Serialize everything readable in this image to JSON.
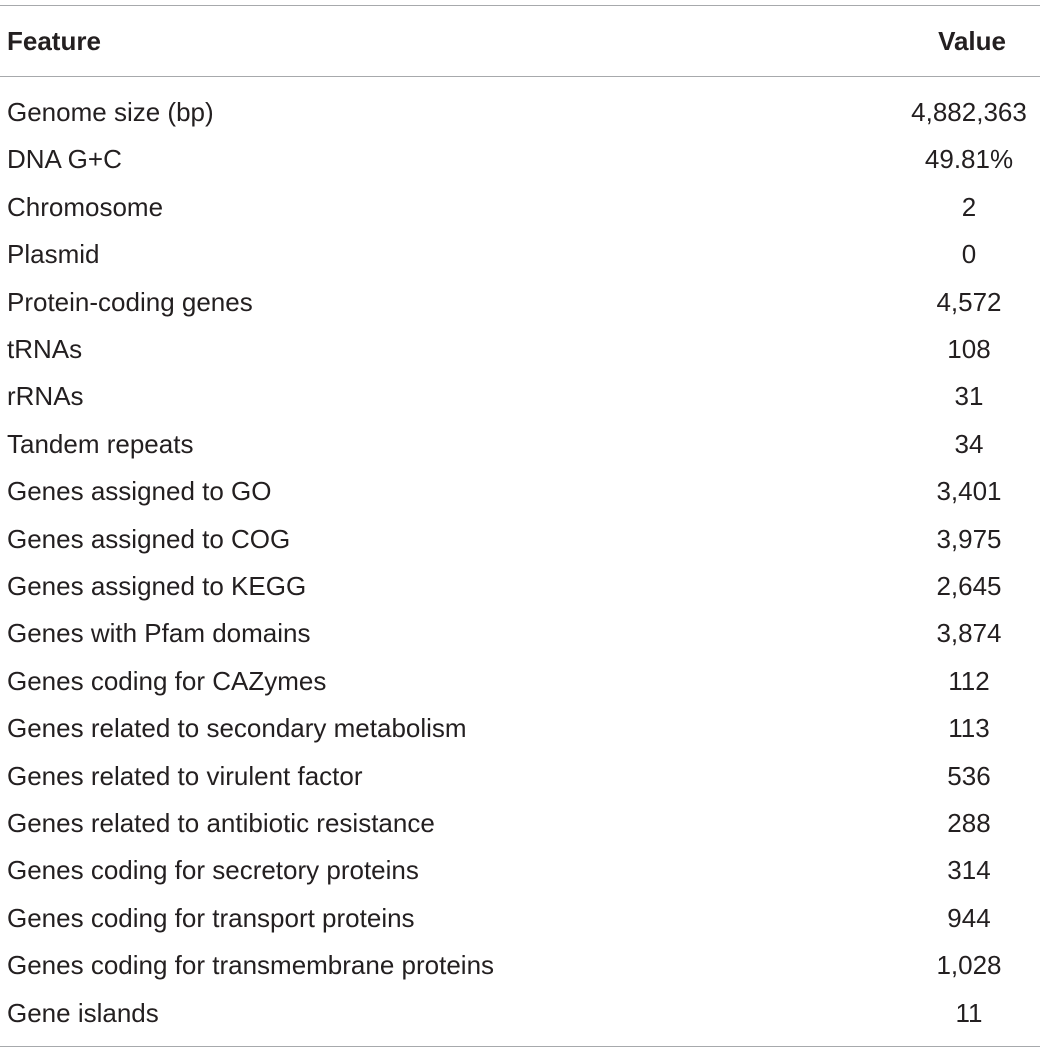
{
  "table": {
    "header": {
      "feature": "Feature",
      "value": "Value"
    },
    "rows": [
      {
        "feature": "Genome size (bp)",
        "value": "4,882,363"
      },
      {
        "feature": "DNA G+C",
        "value": "49.81%"
      },
      {
        "feature": "Chromosome",
        "value": "2"
      },
      {
        "feature": "Plasmid",
        "value": "0"
      },
      {
        "feature": "Protein-coding genes",
        "value": "4,572"
      },
      {
        "feature": "tRNAs",
        "value": "108"
      },
      {
        "feature": "rRNAs",
        "value": "31"
      },
      {
        "feature": "Tandem repeats",
        "value": "34"
      },
      {
        "feature": "Genes assigned to GO",
        "value": "3,401"
      },
      {
        "feature": "Genes assigned to COG",
        "value": "3,975"
      },
      {
        "feature": "Genes assigned to KEGG",
        "value": "2,645"
      },
      {
        "feature": "Genes with Pfam domains",
        "value": "3,874"
      },
      {
        "feature": "Genes coding for CAZymes",
        "value": "112"
      },
      {
        "feature": "Genes related to secondary metabolism",
        "value": "113"
      },
      {
        "feature": "Genes related to virulent factor",
        "value": "536"
      },
      {
        "feature": "Genes related to antibiotic resistance",
        "value": "288"
      },
      {
        "feature": "Genes coding for secretory proteins",
        "value": "314"
      },
      {
        "feature": "Genes coding for transport proteins",
        "value": "944"
      },
      {
        "feature": "Genes coding for transmembrane proteins",
        "value": "1,028"
      },
      {
        "feature": "Gene islands",
        "value": "11"
      }
    ]
  }
}
